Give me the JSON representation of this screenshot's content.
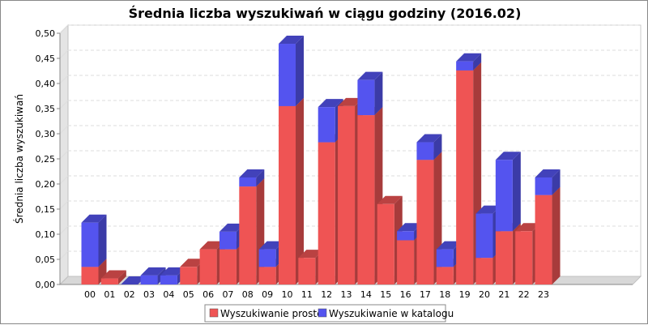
{
  "chart_data": {
    "type": "bar",
    "stacked": true,
    "three_d": true,
    "title": "Średnia liczba wyszukiwań w ciągu godziny (2016.02)",
    "xlabel": "",
    "ylabel": "Średnia liczba wyszukiwań",
    "categories": [
      "00",
      "01",
      "02",
      "03",
      "04",
      "05",
      "06",
      "07",
      "08",
      "09",
      "10",
      "11",
      "12",
      "13",
      "14",
      "15",
      "16",
      "17",
      "18",
      "19",
      "20",
      "21",
      "22",
      "23"
    ],
    "ylim": [
      0,
      0.5
    ],
    "yticks": [
      "0,00",
      "0,05",
      "0,10",
      "0,15",
      "0,20",
      "0,25",
      "0,30",
      "0,35",
      "0,40",
      "0,45",
      "0,50"
    ],
    "grid": true,
    "legend_position": "bottom",
    "series": [
      {
        "name": "Wyszukiwanie proste",
        "color": "#ef5454",
        "values": [
          0.035,
          0.012,
          0.0,
          0.0,
          0.0,
          0.035,
          0.07,
          0.07,
          0.195,
          0.035,
          0.355,
          0.053,
          0.283,
          0.355,
          0.337,
          0.16,
          0.088,
          0.248,
          0.035,
          0.426,
          0.053,
          0.106,
          0.106,
          0.178
        ]
      },
      {
        "name": "Wyszukiwanie w katalogu",
        "color": "#5454ef",
        "values": [
          0.088,
          0.0,
          0.0,
          0.018,
          0.018,
          0.0,
          0.0,
          0.035,
          0.018,
          0.035,
          0.124,
          0.0,
          0.07,
          0.0,
          0.07,
          0.0,
          0.018,
          0.035,
          0.035,
          0.018,
          0.088,
          0.142,
          0.0,
          0.035
        ]
      }
    ]
  }
}
